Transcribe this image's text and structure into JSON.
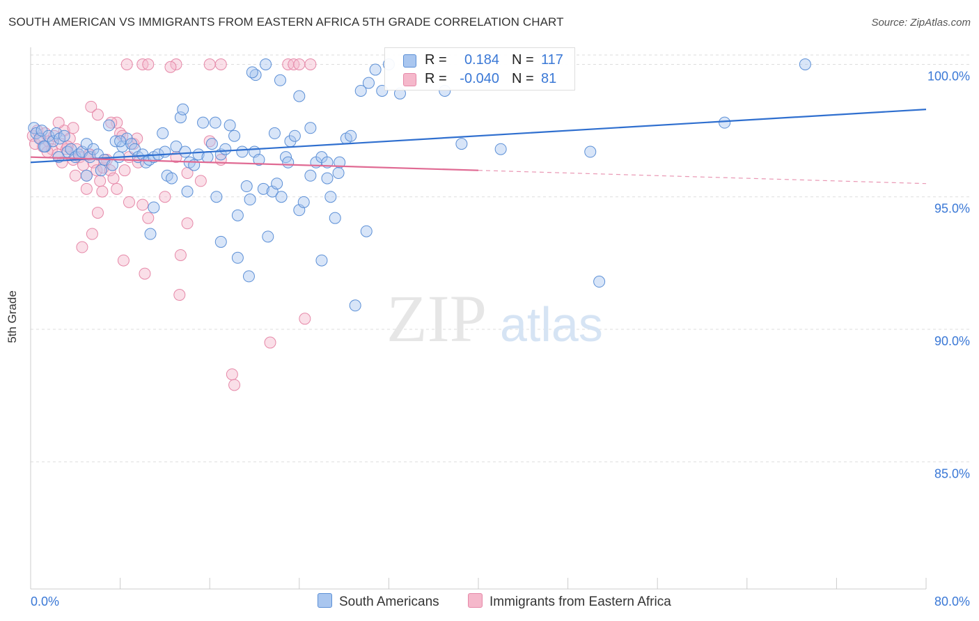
{
  "title": "SOUTH AMERICAN VS IMMIGRANTS FROM EASTERN AFRICA 5TH GRADE CORRELATION CHART",
  "source": "Source: ZipAtlas.com",
  "watermark": {
    "part1": "ZIP",
    "part2": "atlas"
  },
  "colors": {
    "blue_fill": "#a9c6ef",
    "blue_stroke": "#5b8fd6",
    "blue_line": "#2f6fcf",
    "pink_fill": "#f5b8cb",
    "pink_stroke": "#e688a8",
    "pink_line": "#e06a93",
    "axis_text": "#3a78d6",
    "grid": "#dddddd"
  },
  "legend": {
    "rows": [
      {
        "swatch": "blue",
        "r_label": "R =",
        "r_value": "0.184",
        "n_label": "N =",
        "n_value": "117"
      },
      {
        "swatch": "pink",
        "r_label": "R =",
        "r_value": "-0.040",
        "n_label": "N =",
        "n_value": "81"
      }
    ]
  },
  "bottom_legend": {
    "south": "South Americans",
    "eastern": "Immigrants from Eastern Africa"
  },
  "chart_data": {
    "type": "scatter",
    "title": "SOUTH AMERICAN VS IMMIGRANTS FROM EASTERN AFRICA 5TH GRADE CORRELATION CHART",
    "xlabel": "",
    "ylabel": "5th Grade",
    "xlim": [
      0,
      80
    ],
    "ylim": [
      80.2,
      100.8
    ],
    "x_tick_labels": [
      "0.0%",
      "80.0%"
    ],
    "y_ticks": [
      85,
      90,
      95,
      100
    ],
    "y_tick_labels": [
      "85.0%",
      "90.0%",
      "95.0%",
      "100.0%"
    ],
    "grid": true,
    "legend_placement": "top-center",
    "series": [
      {
        "name": "South Americans",
        "color": "#a9c6ef",
        "trend": {
          "x": [
            0,
            80
          ],
          "y": [
            96.3,
            98.3
          ]
        },
        "points": [
          [
            0.3,
            97.6
          ],
          [
            0.5,
            97.4
          ],
          [
            0.8,
            97.2
          ],
          [
            1.0,
            97.5
          ],
          [
            1.3,
            96.9
          ],
          [
            1.6,
            97.3
          ],
          [
            2.0,
            97.1
          ],
          [
            2.3,
            97.4
          ],
          [
            2.6,
            97.2
          ],
          [
            3.0,
            97.3
          ],
          [
            3.3,
            96.7
          ],
          [
            3.6,
            96.8
          ],
          [
            4.0,
            96.5
          ],
          [
            4.3,
            96.6
          ],
          [
            4.6,
            96.7
          ],
          [
            5.0,
            97.0
          ],
          [
            5.3,
            96.5
          ],
          [
            5.6,
            96.8
          ],
          [
            6.0,
            96.6
          ],
          [
            6.3,
            96.0
          ],
          [
            6.6,
            96.4
          ],
          [
            7.0,
            97.7
          ],
          [
            7.3,
            96.2
          ],
          [
            7.6,
            97.1
          ],
          [
            7.9,
            96.5
          ],
          [
            8.2,
            96.9
          ],
          [
            8.6,
            97.2
          ],
          [
            9.0,
            97.0
          ],
          [
            9.3,
            96.8
          ],
          [
            9.6,
            96.5
          ],
          [
            10.0,
            96.6
          ],
          [
            10.3,
            96.3
          ],
          [
            10.6,
            96.4
          ],
          [
            11.0,
            96.5
          ],
          [
            11.4,
            96.6
          ],
          [
            11.8,
            97.4
          ],
          [
            12.2,
            95.8
          ],
          [
            12.6,
            95.7
          ],
          [
            13.0,
            96.9
          ],
          [
            13.4,
            98.0
          ],
          [
            13.8,
            96.7
          ],
          [
            14.2,
            96.3
          ],
          [
            14.6,
            96.2
          ],
          [
            15.0,
            96.6
          ],
          [
            15.4,
            97.8
          ],
          [
            15.8,
            96.5
          ],
          [
            16.2,
            97.0
          ],
          [
            16.6,
            95.0
          ],
          [
            17.0,
            96.6
          ],
          [
            17.4,
            96.8
          ],
          [
            17.8,
            97.7
          ],
          [
            18.2,
            97.3
          ],
          [
            18.5,
            94.3
          ],
          [
            18.9,
            96.7
          ],
          [
            19.3,
            95.4
          ],
          [
            19.6,
            94.9
          ],
          [
            20.0,
            96.7
          ],
          [
            20.4,
            96.4
          ],
          [
            20.8,
            95.3
          ],
          [
            21.2,
            93.5
          ],
          [
            21.6,
            95.2
          ],
          [
            22.0,
            95.5
          ],
          [
            22.4,
            95.0
          ],
          [
            22.8,
            96.5
          ],
          [
            23.2,
            97.1
          ],
          [
            23.6,
            97.3
          ],
          [
            24.0,
            94.5
          ],
          [
            24.4,
            94.8
          ],
          [
            25.0,
            97.6
          ],
          [
            25.5,
            96.3
          ],
          [
            26.0,
            96.5
          ],
          [
            26.5,
            95.7
          ],
          [
            26.8,
            95.0
          ],
          [
            27.2,
            94.2
          ],
          [
            27.6,
            96.3
          ],
          [
            28.2,
            97.2
          ],
          [
            28.6,
            97.3
          ],
          [
            29.0,
            90.9
          ],
          [
            29.5,
            99.0
          ],
          [
            30.2,
            99.3
          ],
          [
            30.8,
            99.8
          ],
          [
            31.4,
            99.0
          ],
          [
            32.0,
            100.0
          ],
          [
            33.0,
            98.9
          ],
          [
            34.0,
            99.4
          ],
          [
            37.0,
            99.0
          ],
          [
            38.5,
            97.0
          ],
          [
            42.0,
            96.8
          ],
          [
            50.0,
            96.7
          ],
          [
            50.8,
            91.8
          ],
          [
            62.0,
            97.8
          ],
          [
            69.2,
            100.0
          ],
          [
            21.0,
            100.0
          ],
          [
            20.1,
            99.6
          ],
          [
            24.0,
            98.8
          ],
          [
            22.3,
            99.4
          ],
          [
            19.8,
            99.7
          ],
          [
            1.2,
            96.9
          ],
          [
            2.5,
            96.5
          ],
          [
            5.0,
            95.8
          ],
          [
            8.0,
            97.1
          ],
          [
            11.0,
            94.6
          ],
          [
            12.0,
            96.7
          ],
          [
            13.6,
            98.3
          ],
          [
            16.5,
            97.8
          ],
          [
            17.0,
            93.3
          ],
          [
            21.8,
            97.4
          ],
          [
            23.0,
            96.3
          ],
          [
            25.0,
            95.8
          ],
          [
            26.5,
            96.3
          ],
          [
            27.5,
            95.9
          ],
          [
            18.5,
            92.7
          ],
          [
            19.5,
            92.0
          ],
          [
            10.7,
            93.6
          ],
          [
            14.0,
            95.2
          ],
          [
            30.0,
            93.7
          ],
          [
            26.0,
            92.6
          ]
        ]
      },
      {
        "name": "Immigrants from Eastern Africa",
        "color": "#f5b8cb",
        "trend": {
          "x": [
            0,
            40
          ],
          "y": [
            96.5,
            96.0
          ]
        },
        "trend_extension": {
          "x": [
            40,
            80
          ],
          "y": [
            96.0,
            95.5
          ]
        },
        "points": [
          [
            0.2,
            97.3
          ],
          [
            0.4,
            97.0
          ],
          [
            0.6,
            97.5
          ],
          [
            0.9,
            97.2
          ],
          [
            1.1,
            96.9
          ],
          [
            1.3,
            97.4
          ],
          [
            1.6,
            97.1
          ],
          [
            1.9,
            96.8
          ],
          [
            2.1,
            97.3
          ],
          [
            2.4,
            96.6
          ],
          [
            2.7,
            97.0
          ],
          [
            3.0,
            97.5
          ],
          [
            3.2,
            96.8
          ],
          [
            3.5,
            97.2
          ],
          [
            3.8,
            96.4
          ],
          [
            4.1,
            96.8
          ],
          [
            4.4,
            96.5
          ],
          [
            4.7,
            96.2
          ],
          [
            5.0,
            95.8
          ],
          [
            5.3,
            96.6
          ],
          [
            5.6,
            96.3
          ],
          [
            5.9,
            96.0
          ],
          [
            6.2,
            95.6
          ],
          [
            6.5,
            96.1
          ],
          [
            6.8,
            96.4
          ],
          [
            7.1,
            96.0
          ],
          [
            7.4,
            95.7
          ],
          [
            7.7,
            97.8
          ],
          [
            8.0,
            97.4
          ],
          [
            8.4,
            96.0
          ],
          [
            8.8,
            96.5
          ],
          [
            9.2,
            97.0
          ],
          [
            9.6,
            96.3
          ],
          [
            10.0,
            94.7
          ],
          [
            2.5,
            97.8
          ],
          [
            3.8,
            97.6
          ],
          [
            5.4,
            98.4
          ],
          [
            6.0,
            98.1
          ],
          [
            7.2,
            97.8
          ],
          [
            8.2,
            97.3
          ],
          [
            9.5,
            97.2
          ],
          [
            1.5,
            96.7
          ],
          [
            2.8,
            96.3
          ],
          [
            4.0,
            95.8
          ],
          [
            5.0,
            95.3
          ],
          [
            6.4,
            95.2
          ],
          [
            7.7,
            95.3
          ],
          [
            8.8,
            94.8
          ],
          [
            10.5,
            94.2
          ],
          [
            12.0,
            95.0
          ],
          [
            13.0,
            96.5
          ],
          [
            14.0,
            95.9
          ],
          [
            15.2,
            95.6
          ],
          [
            16.0,
            97.1
          ],
          [
            17.0,
            96.4
          ],
          [
            4.6,
            93.1
          ],
          [
            5.5,
            93.6
          ],
          [
            6.0,
            94.4
          ],
          [
            8.3,
            92.6
          ],
          [
            10.2,
            92.1
          ],
          [
            13.3,
            91.3
          ],
          [
            13.4,
            92.8
          ],
          [
            14.0,
            94.0
          ],
          [
            18.0,
            88.3
          ],
          [
            18.2,
            87.9
          ],
          [
            21.4,
            89.5
          ],
          [
            24.5,
            90.4
          ],
          [
            8.6,
            100.0
          ],
          [
            10.0,
            100.0
          ],
          [
            10.5,
            100.0
          ],
          [
            13.0,
            100.0
          ],
          [
            16.0,
            100.0
          ],
          [
            17.0,
            100.0
          ],
          [
            23.0,
            100.0
          ],
          [
            23.5,
            100.0
          ],
          [
            24.0,
            100.0
          ],
          [
            25.0,
            100.0
          ],
          [
            5.2,
            96.6
          ],
          [
            6.6,
            96.4
          ],
          [
            3.3,
            96.9
          ],
          [
            12.5,
            99.9
          ]
        ]
      }
    ]
  }
}
